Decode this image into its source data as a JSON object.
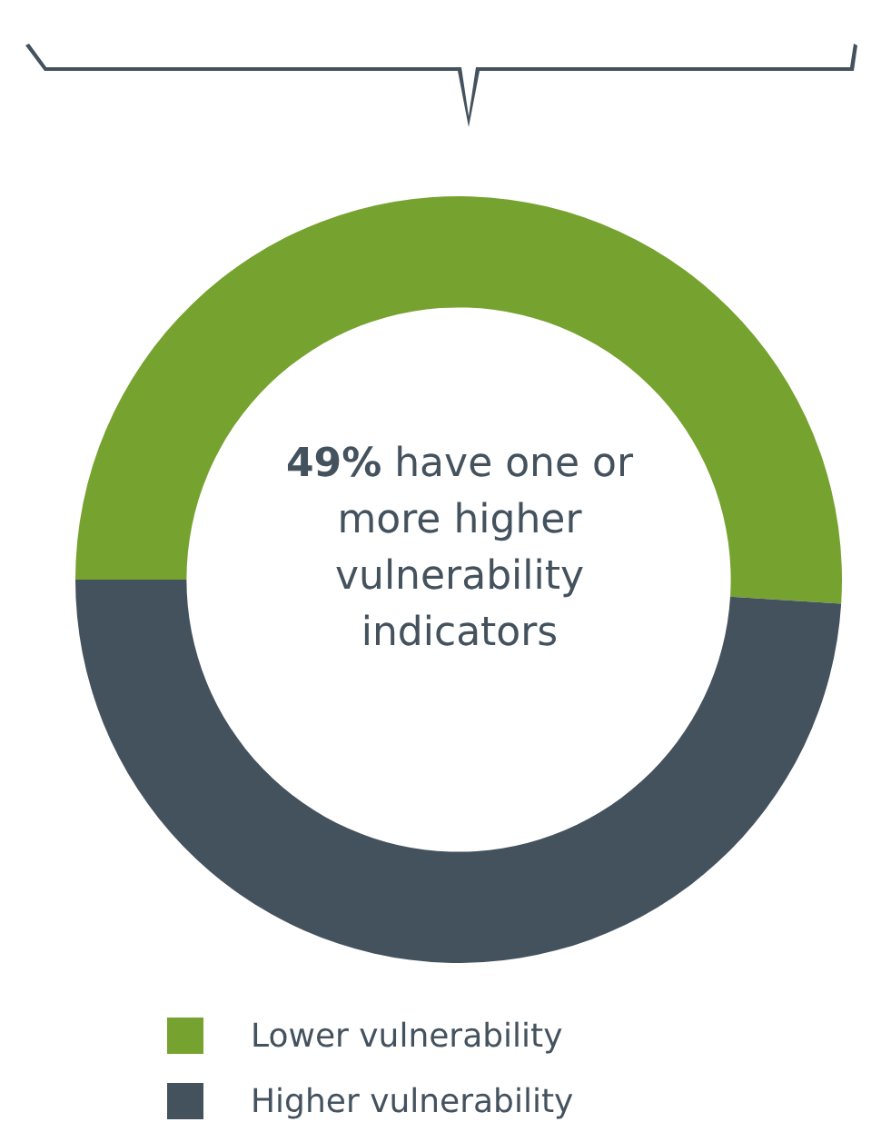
{
  "chart_data": {
    "type": "donut",
    "categories": [
      "Lower vulnerability",
      "Higher vulnerability"
    ],
    "values": [
      51,
      49
    ],
    "colors": [
      "#76a22f",
      "#44525e"
    ],
    "annotations": [
      "49% have one or more higher vulnerability indicators"
    ],
    "legend": "bottom left"
  }
}
